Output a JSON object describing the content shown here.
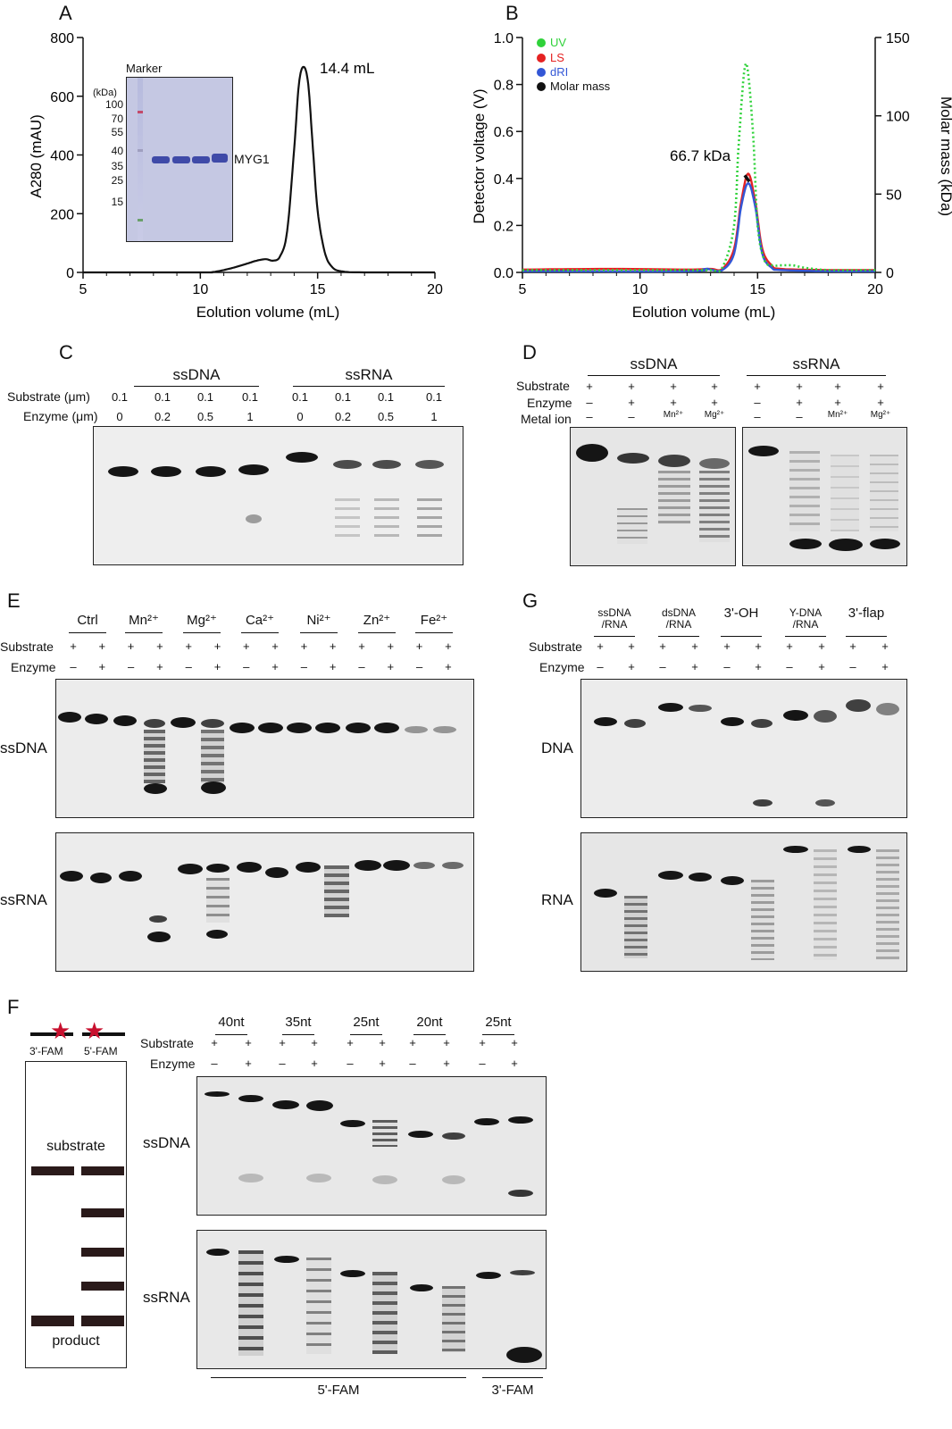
{
  "panels": {
    "A": {
      "letter": "A"
    },
    "B": {
      "letter": "B"
    },
    "C": {
      "letter": "C"
    },
    "D": {
      "letter": "D"
    },
    "E": {
      "letter": "E"
    },
    "F": {
      "letter": "F"
    },
    "G": {
      "letter": "G"
    }
  },
  "chart_data": [
    {
      "type": "line",
      "panel": "A",
      "xlabel": "Eolution volume (mL)",
      "ylabel": "A280 (mAU)",
      "xlim": [
        5,
        20
      ],
      "ylim": [
        0,
        800
      ],
      "xticks": [
        "5",
        "10",
        "15",
        "20"
      ],
      "yticks": [
        "0",
        "200",
        "400",
        "600",
        "800"
      ],
      "series": [
        {
          "x": [
            5,
            10,
            10.5,
            11,
            11.5,
            12,
            12.4,
            12.8,
            13.1,
            13.4,
            13.7,
            14,
            14.2,
            14.4,
            14.6,
            14.8,
            15,
            15.3,
            15.6,
            16,
            17,
            20
          ],
          "values": [
            0,
            0,
            1,
            8,
            18,
            30,
            40,
            45,
            40,
            55,
            140,
            420,
            640,
            700,
            640,
            420,
            210,
            70,
            20,
            4,
            0,
            0
          ]
        }
      ],
      "annotations": [
        "14.4 mL"
      ],
      "inset": {
        "title": "Marker",
        "unit": "(kDa)",
        "markers": [
          "100",
          "70",
          "55",
          "40",
          "35",
          "25",
          "15"
        ],
        "band_label": "MYG1"
      }
    },
    {
      "type": "line",
      "panel": "B",
      "xlabel": "Eolution volume (mL)",
      "ylabel": "Detector voltage (V)",
      "y2label": "Molar mass (kDa)",
      "xlim": [
        5,
        20
      ],
      "ylim": [
        0,
        1.0
      ],
      "y2lim": [
        0,
        150
      ],
      "xticks": [
        "5",
        "10",
        "15",
        "20"
      ],
      "yticks": [
        "0.0",
        "0.2",
        "0.4",
        "0.6",
        "0.8",
        "1.0"
      ],
      "y2ticks": [
        "0",
        "50",
        "100",
        "150"
      ],
      "legend_position": "top-left",
      "series": [
        {
          "name": "UV",
          "color": "#2fd23a",
          "x": [
            5,
            12,
            13,
            13.5,
            14,
            14.2,
            14.5,
            14.8,
            15,
            15.3,
            15.7,
            16,
            16.5,
            17,
            18,
            20
          ],
          "values": [
            0.01,
            0.01,
            0.01,
            0.02,
            0.2,
            0.55,
            0.89,
            0.6,
            0.2,
            0.05,
            0.03,
            0.03,
            0.03,
            0.02,
            0.01,
            0.01
          ]
        },
        {
          "name": "LS",
          "color": "#e52222",
          "x": [
            5,
            8.8,
            12,
            13,
            13.5,
            14,
            14.3,
            14.6,
            14.9,
            15.2,
            15.6,
            16,
            18,
            20
          ],
          "values": [
            0.012,
            0.015,
            0.012,
            0.015,
            0.015,
            0.1,
            0.3,
            0.42,
            0.3,
            0.1,
            0.03,
            0.015,
            0.01,
            0.01
          ]
        },
        {
          "name": "dRI",
          "color": "#3357d6",
          "x": [
            5,
            12,
            12.8,
            13,
            13.5,
            14,
            14.3,
            14.6,
            14.9,
            15.2,
            15.6,
            16,
            18,
            20
          ],
          "values": [
            0.005,
            0.005,
            0.015,
            0.012,
            0.01,
            0.08,
            0.28,
            0.38,
            0.28,
            0.08,
            0.02,
            0.01,
            0.005,
            0.005
          ]
        },
        {
          "name": "Molar mass",
          "color": "#111111",
          "x": [
            14.45,
            14.55,
            14.65
          ],
          "values2": [
            62,
            60,
            58
          ]
        }
      ],
      "annotations": [
        "66.7 kDa"
      ]
    }
  ],
  "gels": {
    "C": {
      "groups": [
        "ssDNA",
        "ssRNA"
      ],
      "rows": [
        {
          "label": "Substrate (μm)",
          "values": [
            "0.1",
            "0.1",
            "0.1",
            "0.1",
            "0.1",
            "0.1",
            "0.1",
            "0.1"
          ]
        },
        {
          "label": "Enzyme (μm)",
          "values": [
            "0",
            "0.2",
            "0.5",
            "1",
            "0",
            "0.2",
            "0.5",
            "1"
          ]
        }
      ]
    },
    "D": {
      "groups": [
        "ssDNA",
        "ssRNA"
      ],
      "rows": [
        {
          "label": "Substrate",
          "values": [
            "+",
            "+",
            "+",
            "+",
            "+",
            "+",
            "+",
            "+"
          ]
        },
        {
          "label": "Enzyme",
          "values": [
            "–",
            "+",
            "+",
            "+",
            "–",
            "+",
            "+",
            "+"
          ]
        },
        {
          "label": "Metal ion",
          "values": [
            "–",
            "–",
            "Mn²⁺",
            "Mg²⁺",
            "–",
            "–",
            "Mn²⁺",
            "Mg²⁺"
          ]
        }
      ]
    },
    "E": {
      "groups": [
        "Ctrl",
        "Mn²⁺",
        "Mg²⁺",
        "Ca²⁺",
        "Ni²⁺",
        "Zn²⁺",
        "Fe²⁺"
      ],
      "rows": [
        {
          "label": "Substrate",
          "values": [
            "+",
            "+",
            "+",
            "+",
            "+",
            "+",
            "+",
            "+",
            "+",
            "+",
            "+",
            "+",
            "+",
            "+"
          ]
        },
        {
          "label": "Enzyme",
          "values": [
            "–",
            "+",
            "–",
            "+",
            "–",
            "+",
            "–",
            "+",
            "–",
            "+",
            "–",
            "+",
            "–",
            "+"
          ]
        }
      ],
      "gel_labels": [
        "ssDNA",
        "ssRNA"
      ]
    },
    "G": {
      "groups": [
        "ssDNA\n/RNA",
        "dsDNA\n/RNA",
        "3'-OH",
        "Y-DNA\n/RNA",
        "3'-flap"
      ],
      "rows": [
        {
          "label": "Substrate",
          "values": [
            "+",
            "+",
            "+",
            "+",
            "+",
            "+",
            "+",
            "+",
            "+",
            "+"
          ]
        },
        {
          "label": "Enzyme",
          "values": [
            "–",
            "+",
            "–",
            "+",
            "–",
            "+",
            "–",
            "+",
            "–",
            "+"
          ]
        }
      ],
      "gel_labels": [
        "DNA",
        "RNA"
      ]
    },
    "F": {
      "groups": [
        "40nt",
        "35nt",
        "25nt",
        "20nt",
        "25nt"
      ],
      "rows": [
        {
          "label": "Substrate",
          "values": [
            "+",
            "+",
            "+",
            "+",
            "+",
            "+",
            "+",
            "+",
            "+",
            "+"
          ]
        },
        {
          "label": "Enzyme",
          "values": [
            "–",
            "+",
            "–",
            "+",
            "–",
            "+",
            "–",
            "+",
            "–",
            "+"
          ]
        }
      ],
      "gel_labels": [
        "ssDNA",
        "ssRNA"
      ],
      "bottom_labels": [
        "5'-FAM",
        "3'-FAM"
      ],
      "schematic": {
        "labels": [
          "3'-FAM",
          "5'-FAM"
        ],
        "substrate": "substrate",
        "product": "product"
      }
    }
  }
}
